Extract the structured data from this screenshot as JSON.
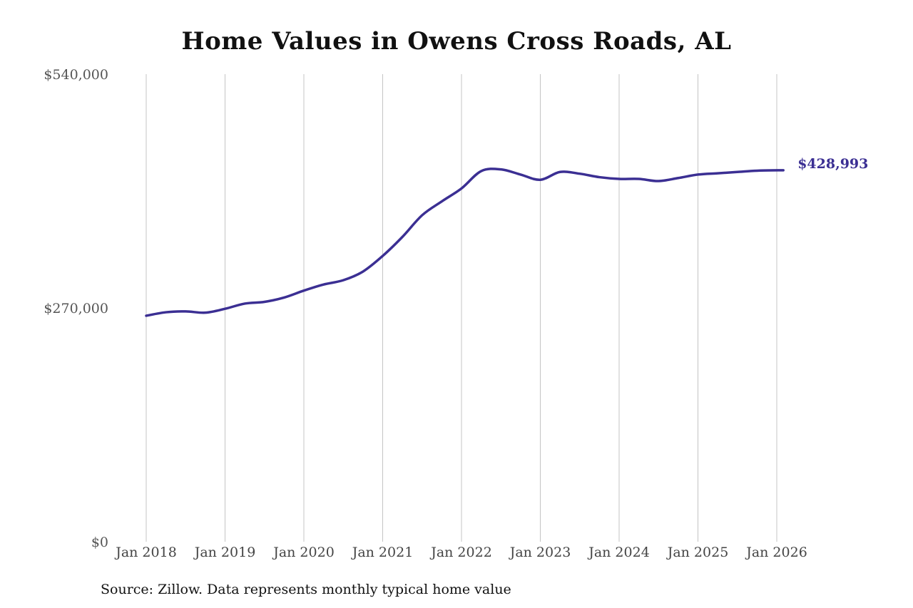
{
  "chart_data": {
    "type": "line",
    "title": "Home Values in Owens Cross Roads, AL",
    "source": "Source: Zillow. Data represents monthly typical home value",
    "xlabel": "",
    "ylabel": "",
    "ylim": [
      0,
      540000
    ],
    "y_ticks": [
      {
        "value": 0,
        "label": "$0"
      },
      {
        "value": 270000,
        "label": "$270,000"
      },
      {
        "value": 540000,
        "label": "$540,000"
      }
    ],
    "x_ticks": [
      {
        "value": "2018-01",
        "label": "Jan 2018"
      },
      {
        "value": "2019-01",
        "label": "Jan 2019"
      },
      {
        "value": "2020-01",
        "label": "Jan 2020"
      },
      {
        "value": "2021-01",
        "label": "Jan 2021"
      },
      {
        "value": "2022-01",
        "label": "Jan 2022"
      },
      {
        "value": "2023-01",
        "label": "Jan 2023"
      },
      {
        "value": "2024-01",
        "label": "Jan 2024"
      },
      {
        "value": "2025-01",
        "label": "Jan 2025"
      },
      {
        "value": "2026-01",
        "label": "Jan 2026"
      }
    ],
    "grid": {
      "vertical": true,
      "horizontal": false
    },
    "line_color": "#3b2f93",
    "end_label": "$428,993",
    "series": [
      {
        "values": [
          {
            "x": "2018-01",
            "y": 261000
          },
          {
            "x": "2018-04",
            "y": 265000
          },
          {
            "x": "2018-07",
            "y": 266000
          },
          {
            "x": "2018-10",
            "y": 264500
          },
          {
            "x": "2019-01",
            "y": 269000
          },
          {
            "x": "2019-04",
            "y": 275000
          },
          {
            "x": "2019-07",
            "y": 277000
          },
          {
            "x": "2019-10",
            "y": 282000
          },
          {
            "x": "2020-01",
            "y": 290000
          },
          {
            "x": "2020-04",
            "y": 297000
          },
          {
            "x": "2020-07",
            "y": 302000
          },
          {
            "x": "2020-10",
            "y": 312000
          },
          {
            "x": "2021-01",
            "y": 330000
          },
          {
            "x": "2021-04",
            "y": 352000
          },
          {
            "x": "2021-07",
            "y": 377000
          },
          {
            "x": "2021-10",
            "y": 393000
          },
          {
            "x": "2022-01",
            "y": 408000
          },
          {
            "x": "2022-04",
            "y": 428000
          },
          {
            "x": "2022-07",
            "y": 430000
          },
          {
            "x": "2022-10",
            "y": 424000
          },
          {
            "x": "2023-01",
            "y": 418000
          },
          {
            "x": "2023-04",
            "y": 427000
          },
          {
            "x": "2023-07",
            "y": 425000
          },
          {
            "x": "2023-10",
            "y": 421000
          },
          {
            "x": "2024-01",
            "y": 419000
          },
          {
            "x": "2024-04",
            "y": 419000
          },
          {
            "x": "2024-07",
            "y": 416500
          },
          {
            "x": "2024-10",
            "y": 420000
          },
          {
            "x": "2025-01",
            "y": 424000
          },
          {
            "x": "2025-04",
            "y": 425500
          },
          {
            "x": "2025-07",
            "y": 427000
          },
          {
            "x": "2025-10",
            "y": 428500
          },
          {
            "x": "2026-02",
            "y": 428993
          }
        ]
      }
    ]
  }
}
